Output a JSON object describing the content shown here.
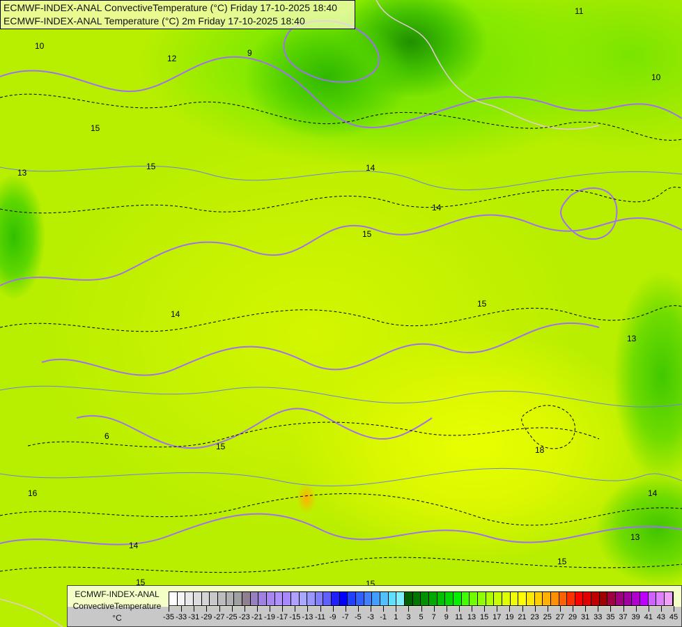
{
  "header": {
    "line1": "ECMWF-INDEX-ANAL ConvectiveTemperature (°C) Friday 17-10-2025 18:40",
    "line2": "ECMWF-INDEX-ANAL Temperature (°C) 2m Friday 17-10-2025 18:40"
  },
  "legend": {
    "source": "ECMWF-INDEX-ANAL",
    "parameter": "ConvectiveTemperature",
    "unit": "°C",
    "labels": [
      "-35",
      "-33",
      "-31",
      "-29",
      "-27",
      "-25",
      "-23",
      "-21",
      "-19",
      "-17",
      "-15",
      "-13",
      "-11",
      "-9",
      "-7",
      "-5",
      "-3",
      "-1",
      "1",
      "3",
      "5",
      "7",
      "9",
      "11",
      "13",
      "15",
      "17",
      "19",
      "21",
      "23",
      "25",
      "27",
      "29",
      "31",
      "33",
      "35",
      "37",
      "39",
      "41",
      "43",
      "45"
    ],
    "colors": [
      "#ffffff",
      "#f4f4f4",
      "#e8e8e8",
      "#dcdcdc",
      "#d4d4d4",
      "#c8c8c8",
      "#bcbcbc",
      "#b0b0b0",
      "#a0a0a0",
      "#908090",
      "#9880c0",
      "#a080e0",
      "#a888f0",
      "#b090ff",
      "#a888ff",
      "#b0a0ff",
      "#a8a8ff",
      "#9898ff",
      "#8080ff",
      "#6060ff",
      "#2020ff",
      "#0000ff",
      "#2040ff",
      "#3060ff",
      "#4080ff",
      "#40a0ff",
      "#50c0ff",
      "#60e0ff",
      "#80f0ff",
      "#006000",
      "#007800",
      "#009000",
      "#00a800",
      "#00c000",
      "#00d800",
      "#00f000",
      "#40ff00",
      "#70ff00",
      "#90ff00",
      "#b0ff00",
      "#c8ff00",
      "#e0ff00",
      "#f0ff00",
      "#ffff00",
      "#ffe800",
      "#ffd000",
      "#ffb000",
      "#ff9000",
      "#ff6000",
      "#ff3000",
      "#ff0000",
      "#e00000",
      "#c00000",
      "#a00000",
      "#a00040",
      "#a00080",
      "#a000a0",
      "#b000d0",
      "#c000ff",
      "#d060ff",
      "#e080ff",
      "#f0a0f8"
    ]
  },
  "map": {
    "contour_labels": [
      {
        "t": "10"
      },
      {
        "t": "12"
      },
      {
        "t": "9"
      },
      {
        "t": "11"
      },
      {
        "t": "15"
      },
      {
        "t": "15"
      },
      {
        "t": "13"
      },
      {
        "t": "14"
      },
      {
        "t": "14"
      },
      {
        "t": "15"
      },
      {
        "t": "14"
      },
      {
        "t": "15"
      },
      {
        "t": "13"
      },
      {
        "t": "6"
      },
      {
        "t": "15"
      },
      {
        "t": "18"
      },
      {
        "t": "16"
      },
      {
        "t": "14"
      },
      {
        "t": "14"
      },
      {
        "t": "13"
      },
      {
        "t": "15"
      },
      {
        "t": "15"
      },
      {
        "t": "15"
      },
      {
        "t": "10"
      }
    ]
  }
}
